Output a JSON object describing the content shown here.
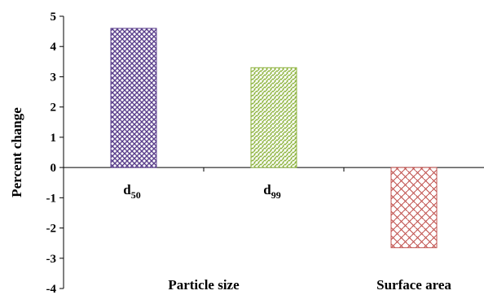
{
  "chart_data": {
    "type": "bar",
    "categories": [
      "d50",
      "d99",
      "Surface area"
    ],
    "category_labels": [
      {
        "main": "d",
        "sub": "50"
      },
      {
        "main": "d",
        "sub": "99"
      },
      {
        "main": "",
        "sub": ""
      }
    ],
    "values": [
      4.6,
      3.3,
      -2.65
    ],
    "group_labels": [
      "Particle size",
      "Surface area"
    ],
    "ylabel": "Percent change",
    "xlabel": "",
    "ylim": [
      -4,
      5
    ],
    "yticks": [
      5,
      4,
      3,
      2,
      1,
      0,
      -1,
      -2,
      -3,
      -4
    ],
    "grid": false,
    "legend": "none",
    "bar_styles": [
      {
        "pattern": "crosshatch",
        "color": "#5b3f8c"
      },
      {
        "pattern": "diagonal",
        "color": "#8db33e"
      },
      {
        "pattern": "weave",
        "color": "#c0504d"
      }
    ]
  }
}
